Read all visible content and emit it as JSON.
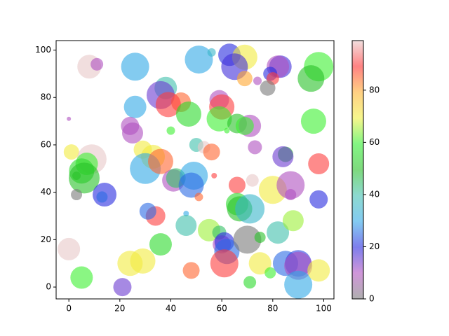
{
  "chart_data": {
    "type": "scatter",
    "x": [
      8,
      11,
      26,
      51,
      56,
      63,
      69,
      65,
      83,
      82,
      79,
      98,
      95,
      69,
      74,
      80,
      38,
      36,
      44,
      39,
      47,
      26,
      59,
      60,
      59,
      66,
      71,
      62,
      40,
      24,
      25,
      0,
      1,
      9,
      7,
      5,
      6,
      3,
      3,
      14,
      13,
      29,
      33,
      30,
      36,
      41,
      42,
      49,
      48,
      51,
      50,
      53,
      56,
      57,
      69,
      73,
      85,
      84,
      98,
      96,
      72,
      66,
      80,
      87,
      87,
      98,
      66,
      67,
      71,
      82,
      88,
      46,
      46,
      34,
      31,
      55,
      59,
      60,
      61,
      62,
      61,
      70,
      75,
      36,
      0,
      24,
      29,
      21,
      5,
      48,
      71,
      75,
      79,
      85,
      90,
      90,
      90,
      98,
      78
    ],
    "y": [
      93,
      94,
      93,
      96,
      99,
      98,
      97,
      93,
      93,
      93,
      90,
      93,
      88,
      88,
      87,
      88,
      84,
      81,
      78,
      77,
      73,
      76,
      79,
      76,
      71,
      69,
      68,
      66,
      66,
      68,
      65,
      71,
      57,
      54,
      52,
      49,
      46,
      47,
      39,
      39,
      38,
      58,
      55,
      50,
      53,
      45,
      46,
      47,
      43,
      38,
      60,
      59,
      57,
      47,
      68,
      59,
      56,
      55,
      52,
      70,
      45,
      43,
      41,
      43,
      39,
      37,
      35,
      33,
      33,
      23,
      28,
      31,
      26,
      30,
      32,
      24,
      23,
      18,
      19,
      15,
      10,
      20,
      21,
      18,
      16,
      10,
      11,
      0,
      4,
      7,
      2,
      10,
      6,
      10,
      10,
      9,
      1,
      7,
      84
    ],
    "sizes": [
      17,
      9,
      20,
      20,
      6,
      16,
      18,
      19,
      16,
      16,
      10,
      21,
      19,
      11,
      6,
      9,
      16,
      20,
      14,
      18,
      18,
      16,
      14,
      18,
      18,
      14,
      16,
      4,
      6,
      13,
      15,
      3,
      11,
      21,
      16,
      18,
      22,
      6,
      8,
      17,
      8,
      13,
      17,
      22,
      18,
      16,
      14,
      20,
      18,
      6,
      10,
      9,
      12,
      4,
      13,
      10,
      11,
      15,
      15,
      18,
      9,
      12,
      20,
      20,
      8,
      13,
      16,
      18,
      21,
      16,
      15,
      4,
      15,
      14,
      12,
      16,
      10,
      13,
      14,
      18,
      20,
      20,
      8,
      16,
      16,
      18,
      18,
      13,
      16,
      12,
      9,
      16,
      8,
      18,
      19,
      20,
      20,
      16,
      11
    ],
    "colors": [
      99,
      10,
      30,
      30,
      35,
      20,
      70,
      18,
      18,
      10,
      20,
      60,
      50,
      80,
      10,
      90,
      40,
      15,
      85,
      90,
      55,
      30,
      10,
      90,
      60,
      50,
      10,
      60,
      60,
      10,
      10,
      10,
      70,
      99,
      60,
      55,
      50,
      50,
      0,
      20,
      25,
      70,
      70,
      30,
      85,
      10,
      45,
      30,
      25,
      85,
      40,
      99,
      85,
      90,
      60,
      10,
      50,
      15,
      90,
      60,
      99,
      90,
      70,
      10,
      10,
      20,
      55,
      50,
      35,
      40,
      65,
      30,
      40,
      90,
      25,
      65,
      45,
      10,
      20,
      25,
      90,
      0,
      50,
      55,
      99,
      70,
      70,
      15,
      60,
      85,
      55,
      70,
      60,
      25,
      22,
      10,
      30,
      70,
      0
    ],
    "colormap": [
      "#7a7a7a",
      "#b050c0",
      "#2828e0",
      "#30a8e8",
      "#40c0b0",
      "#28c028",
      "#30f030",
      "#f0f040",
      "#ffb030",
      "#ff3030",
      "#e8c8c8"
    ],
    "alpha": 0.6,
    "xlim": [
      -5,
      104
    ],
    "ylim": [
      -5,
      104
    ],
    "xticks": [
      0,
      20,
      40,
      60,
      80,
      100
    ],
    "yticks": [
      0,
      20,
      40,
      60,
      80,
      100
    ],
    "clim": [
      0,
      99
    ],
    "cticks": [
      0,
      20,
      40,
      60,
      80
    ]
  }
}
